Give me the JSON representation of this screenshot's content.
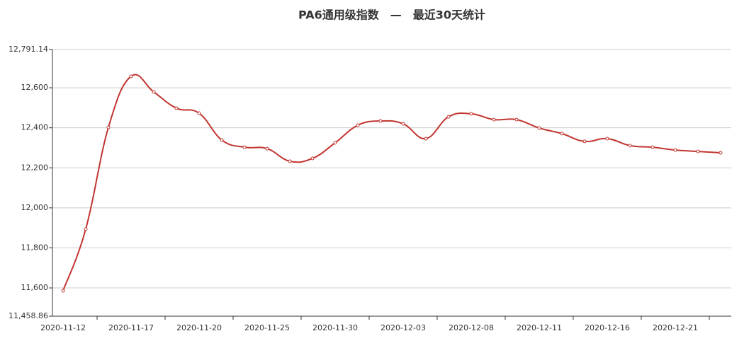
{
  "chart_data": {
    "type": "line",
    "title": "PA6通用级指数　—　最近30天统计",
    "categories": [
      "2020-11-12",
      null,
      null,
      "2020-11-17",
      null,
      null,
      "2020-11-20",
      null,
      null,
      "2020-11-25",
      null,
      null,
      "2020-11-30",
      null,
      null,
      "2020-12-03",
      null,
      null,
      "2020-12-08",
      null,
      null,
      "2020-12-11",
      null,
      null,
      "2020-12-16",
      null,
      null,
      "2020-12-21",
      null,
      null
    ],
    "series": [
      {
        "name": "PA6通用级指数",
        "color": "#c23531",
        "values": [
          11586,
          11894,
          12402,
          12657,
          12579,
          12498,
          12473,
          12339,
          12303,
          12296,
          12233,
          12247,
          12325,
          12413,
          12434,
          12420,
          12346,
          12455,
          12470,
          12441,
          12441,
          12399,
          12371,
          12332,
          12346,
          12311,
          12303,
          12289,
          12282,
          12275
        ]
      }
    ],
    "ylim": [
      11458.86,
      12791.14
    ],
    "yticks": [
      {
        "value": 11458.86,
        "label": "11,458.86"
      },
      {
        "value": 11600,
        "label": "11,600"
      },
      {
        "value": 11800,
        "label": "11,800"
      },
      {
        "value": 12000,
        "label": "12,000"
      },
      {
        "value": 12200,
        "label": "12,200"
      },
      {
        "value": 12400,
        "label": "12,400"
      },
      {
        "value": 12600,
        "label": "12,600"
      },
      {
        "value": 12791.14,
        "label": "12,791.14"
      }
    ],
    "grid": true
  }
}
